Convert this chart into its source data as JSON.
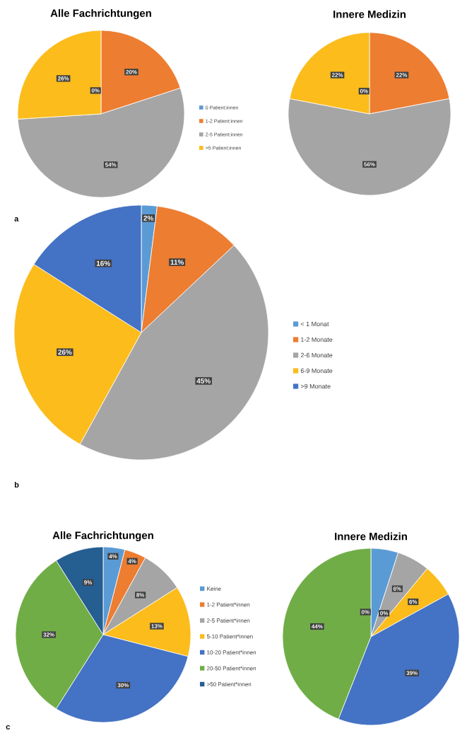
{
  "chart_data": [
    {
      "type": "pie",
      "title": "Alle Fachrichtungen",
      "categories": [
        "0 Patient:innen",
        "1-2 Patient:innen",
        "2-5 Patient:innen",
        ">5 Patient:innen"
      ],
      "values": [
        0,
        20,
        54,
        26
      ],
      "colors": [
        "#5b9bd5",
        "#ed7d31",
        "#a5a5a5",
        "#fbbc1c"
      ],
      "value_labels": [
        "0%",
        "20%",
        "54%",
        "26%"
      ],
      "legend": "right",
      "annotations": [
        "a"
      ]
    },
    {
      "type": "pie",
      "title": "Innere Medizin",
      "categories": [
        null,
        null,
        null,
        null
      ],
      "values": [
        0,
        22,
        56,
        22
      ],
      "colors": [
        "#5b9bd5",
        "#ed7d31",
        "#a5a5a5",
        "#fbbc1c"
      ],
      "value_labels": [
        "0%",
        "22%",
        "56%",
        "22%"
      ]
    },
    {
      "type": "pie",
      "categories": [
        "< 1 Monat",
        "1-2 Monate",
        "2-6 Monate",
        "6-9 Monate",
        ">9 Monate"
      ],
      "values": [
        2,
        11,
        45,
        26,
        16
      ],
      "colors": [
        "#5b9bd5",
        "#ed7d31",
        "#a5a5a5",
        "#fbbc1c",
        "#4472c4"
      ],
      "value_labels": [
        "2%",
        "11%",
        "45%",
        "26%",
        "16%"
      ],
      "legend": "right",
      "annotations": [
        "b"
      ]
    },
    {
      "type": "pie",
      "title": "Alle Fachrichtungen",
      "categories": [
        "Keine",
        "1-2 Patient*innen",
        "2-5 Patient*innen",
        "5-10 Patient*innen",
        "10-20 Patient*innen",
        "20-50 Patient*innen",
        ">50 Patient*innen"
      ],
      "values": [
        4,
        4,
        8,
        13,
        30,
        32,
        9
      ],
      "colors": [
        "#5b9bd5",
        "#ed7d31",
        "#a5a5a5",
        "#fbbc1c",
        "#4472c4",
        "#70ad47",
        "#255e91"
      ],
      "value_labels": [
        "4%",
        "4%",
        "8%",
        "13%",
        "30%",
        "32%",
        "9%"
      ],
      "legend": "right",
      "annotations": [
        "c"
      ]
    },
    {
      "type": "pie",
      "title": "Innere Medizin",
      "categories": [
        null,
        null,
        null,
        null,
        null,
        null,
        null
      ],
      "values": [
        5,
        0,
        6,
        6,
        39,
        44,
        0
      ],
      "colors": [
        "#5b9bd5",
        "#ed7d31",
        "#a5a5a5",
        "#fbbc1c",
        "#4472c4",
        "#70ad47",
        "#255e91"
      ],
      "value_labels": [
        null,
        "0%",
        "6%",
        "6%",
        "39%",
        "44%",
        "0%"
      ]
    }
  ]
}
